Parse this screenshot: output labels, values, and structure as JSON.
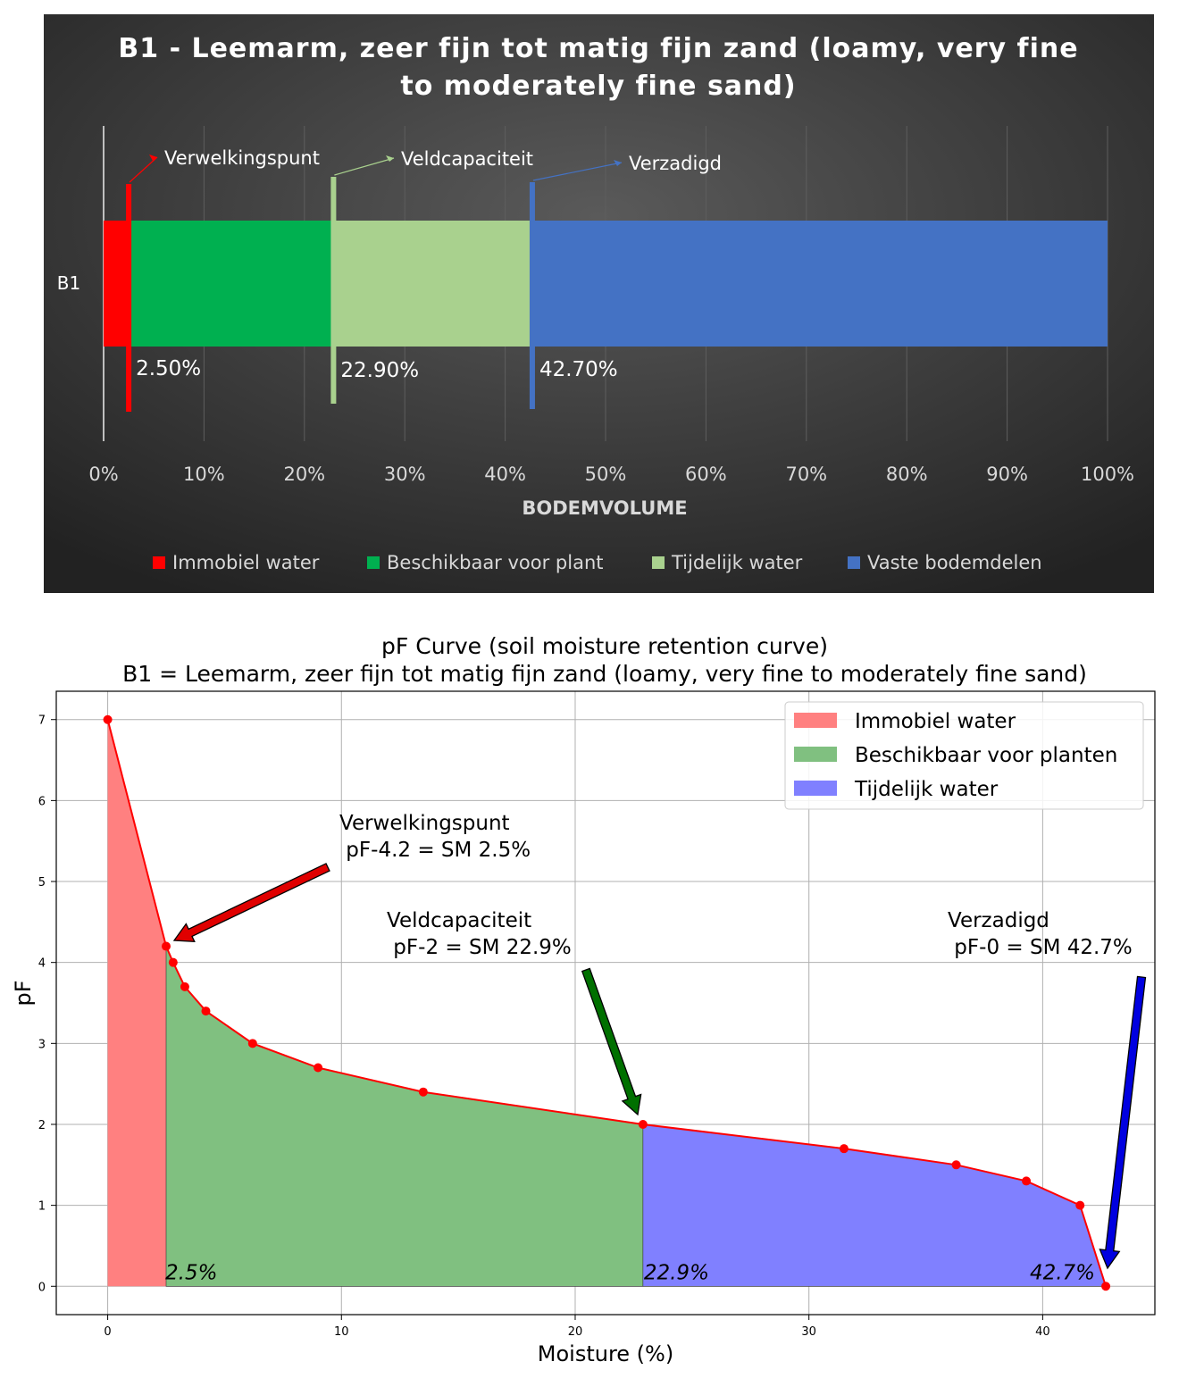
{
  "chart_data": [
    {
      "type": "bar",
      "orientation": "horizontal",
      "stacked": true,
      "title": "B1 - Leemarm, zeer fijn tot matig fijn zand (loamy, very fine to moderately fine sand)",
      "title_lines": [
        "B1 - Leemarm, zeer fijn tot matig fijn zand (loamy, very fine",
        "to moderately fine sand)"
      ],
      "xlabel": "BODEMVOLUME",
      "xlim": [
        0,
        100
      ],
      "xticks": [
        "0%",
        "10%",
        "20%",
        "30%",
        "40%",
        "50%",
        "60%",
        "70%",
        "80%",
        "90%",
        "100%"
      ],
      "categories": [
        "B1"
      ],
      "series": [
        {
          "name": "Immobiel water",
          "values": [
            2.5
          ],
          "color": "#ff0000"
        },
        {
          "name": "Beschikbaar voor plant",
          "values": [
            20.4
          ],
          "color": "#00b050"
        },
        {
          "name": "Tijdelijk water",
          "values": [
            19.8
          ],
          "color": "#a9d18e"
        },
        {
          "name": "Vaste bodemdelen",
          "values": [
            57.3
          ],
          "color": "#4472c4"
        }
      ],
      "markers": [
        {
          "label": "Verwelkingspunt",
          "value": 2.5,
          "value_label": "2.50%",
          "color": "#ff0000"
        },
        {
          "label": "Veldcapaciteit",
          "value": 22.9,
          "value_label": "22.90%",
          "color": "#a9d18e"
        },
        {
          "label": "Verzadigd",
          "value": 42.7,
          "value_label": "42.70%",
          "color": "#4472c4"
        }
      ],
      "legend_position": "bottom",
      "grid": true,
      "background": "dark-gradient"
    },
    {
      "type": "area",
      "title": "pF Curve (soil moisture retention curve)",
      "subtitle": "B1 = Leemarm, zeer fijn tot matig fijn zand (loamy, very fine to moderately fine sand)",
      "xlabel": "Moisture (%)",
      "ylabel": "pF",
      "xlim": [
        -2.2,
        44.8
      ],
      "ylim": [
        -0.35,
        7.35
      ],
      "xticks": [
        0,
        10,
        20,
        30,
        40
      ],
      "yticks": [
        0,
        1,
        2,
        3,
        4,
        5,
        6,
        7
      ],
      "grid": true,
      "line_color": "#ff0000",
      "points": [
        [
          0,
          7
        ],
        [
          2.5,
          4.2
        ],
        [
          2.8,
          4.0
        ],
        [
          3.3,
          3.7
        ],
        [
          4.2,
          3.4
        ],
        [
          6.2,
          3.0
        ],
        [
          9.0,
          2.7
        ],
        [
          13.5,
          2.4
        ],
        [
          22.9,
          2.0
        ],
        [
          31.5,
          1.7
        ],
        [
          36.3,
          1.5
        ],
        [
          39.3,
          1.3
        ],
        [
          41.6,
          1.0
        ],
        [
          42.7,
          0
        ]
      ],
      "regions": [
        {
          "name": "Immobiel water",
          "from": 0,
          "to": 2.5,
          "color": "#ff8080"
        },
        {
          "name": "Beschikbaar voor planten",
          "from": 2.5,
          "to": 22.9,
          "color": "#80c080"
        },
        {
          "name": "Tijdelijk water",
          "from": 22.9,
          "to": 42.7,
          "color": "#8080ff"
        }
      ],
      "annotations": [
        {
          "text_lines": [
            "Verwelkingspunt",
            " pF-4.2 = SM 2.5%"
          ],
          "x": 2.5,
          "y": 4.2,
          "arrow_color": "#e00000"
        },
        {
          "text_lines": [
            "Veldcapaciteit",
            " pF-2 = SM 22.9%"
          ],
          "x": 22.9,
          "y": 2.0,
          "arrow_color": "#007000"
        },
        {
          "text_lines": [
            "Verzadigd",
            " pF-0 = SM 42.7%"
          ],
          "x": 42.7,
          "y": 0,
          "arrow_color": "#0000e0"
        }
      ],
      "value_labels": [
        {
          "text": "2.5%",
          "x": 2.5
        },
        {
          "text": "22.9%",
          "x": 22.9
        },
        {
          "text": "42.7%",
          "x": 42.7
        }
      ],
      "legend_position": "top-right"
    }
  ]
}
